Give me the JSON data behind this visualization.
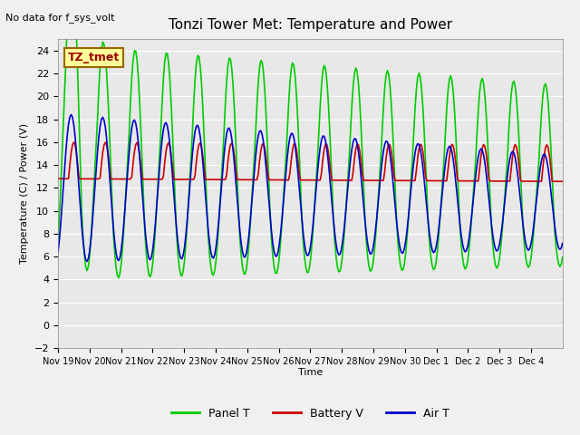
{
  "title": "Tonzi Tower Met: Temperature and Power",
  "ylabel": "Temperature (C) / Power (V)",
  "xlabel": "Time",
  "top_left_note": "No data for f_sys_volt",
  "legend_label": "TZ_tmet",
  "ylim": [
    -2,
    25
  ],
  "yticks": [
    -2,
    0,
    2,
    4,
    6,
    8,
    10,
    12,
    14,
    16,
    18,
    20,
    22,
    24
  ],
  "xtick_labels": [
    "Nov 19",
    "Nov 20",
    "Nov 21",
    "Nov 22",
    "Nov 23",
    "Nov 24",
    "Nov 25",
    "Nov 26",
    "Nov 27",
    "Nov 28",
    "Nov 29",
    "Nov 30",
    "Dec 1",
    "Dec 2",
    "Dec 3",
    "Dec 4"
  ],
  "n_days": 16,
  "bg_color": "#e8e8e8",
  "panel_color": "#00cc00",
  "battery_color": "#cc0000",
  "air_color": "#0000cc",
  "grid_color": "#ffffff",
  "legend_labels": [
    "Panel T",
    "Battery V",
    "Air T"
  ]
}
